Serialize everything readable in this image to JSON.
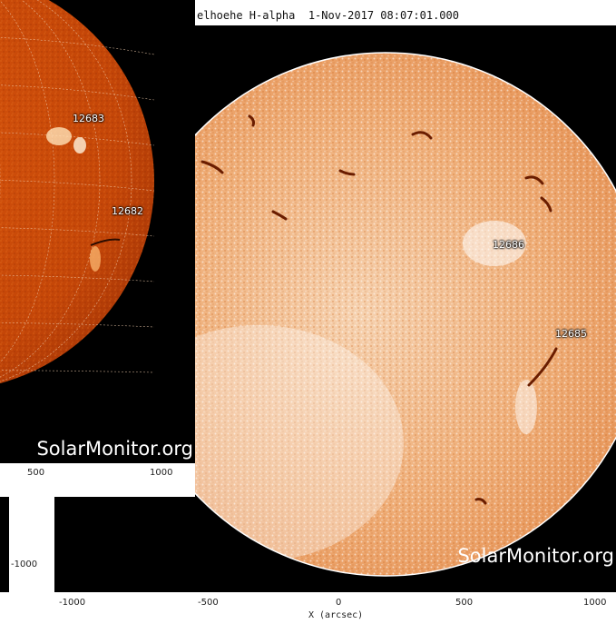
{
  "back_image": {
    "active_regions": [
      "12683",
      "12682"
    ],
    "x_ticks": [
      "500",
      "1000"
    ],
    "y_ticks": [
      "-1000"
    ],
    "watermark": "SolarMonitor.org",
    "disk_color": "#c84a08"
  },
  "front_image": {
    "title": "elhoehe H-alpha  1-Nov-2017 08:07:01.000",
    "active_regions": [
      "12686",
      "12685"
    ],
    "x_ticks": [
      "-1000",
      "-500",
      "0",
      "500",
      "1000"
    ],
    "x_label": "X (arcsec)",
    "watermark": "SolarMonitor.org",
    "disk_color": "#f0b07a"
  }
}
